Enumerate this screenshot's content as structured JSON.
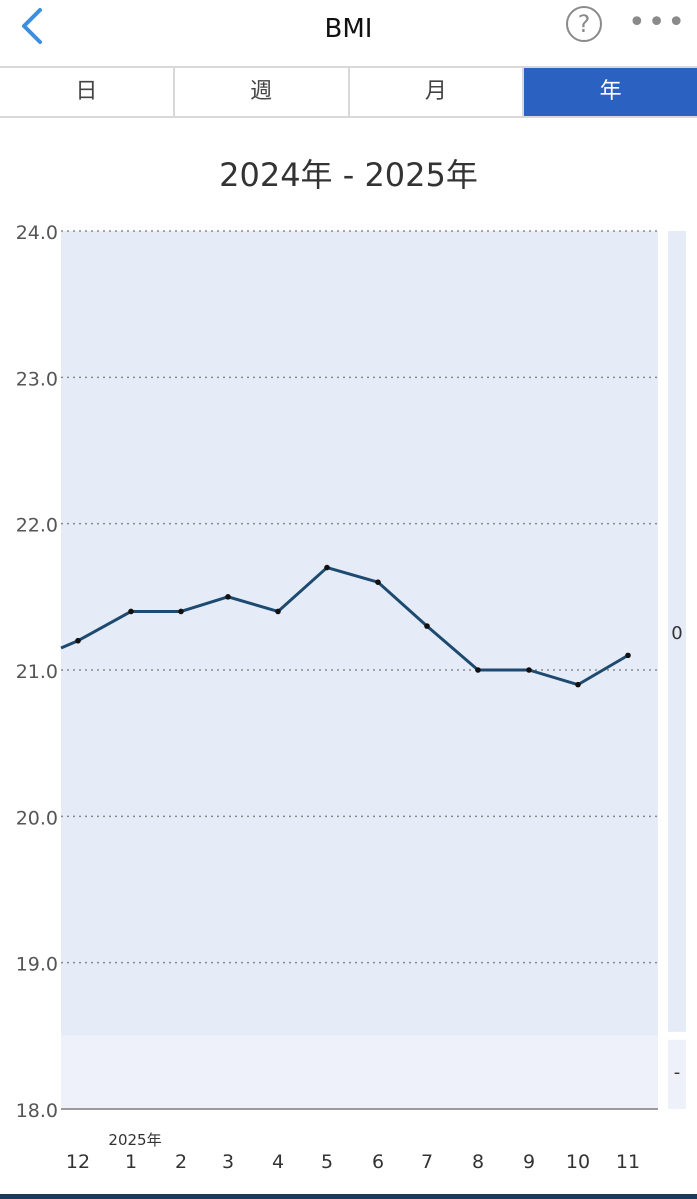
{
  "header": {
    "back_icon": "chevron-left-icon",
    "title": "BMI",
    "help_label": "?",
    "more_label": "•••"
  },
  "tabs": [
    {
      "label": "日",
      "active": false
    },
    {
      "label": "週",
      "active": false
    },
    {
      "label": "月",
      "active": false
    },
    {
      "label": "年",
      "active": true
    }
  ],
  "range_label": "2024年 - 2025年",
  "colors": {
    "accent": "#2b62c1",
    "line": "#1e4a70",
    "plot_band": "#e5ecf7",
    "plot_lower_band": "#eef1f9"
  },
  "chart_data": {
    "type": "line",
    "categories": [
      "12",
      "1",
      "2",
      "3",
      "4",
      "5",
      "6",
      "7",
      "8",
      "9",
      "10",
      "11"
    ],
    "year_marker": {
      "category": "1",
      "label": "2025年"
    },
    "values": [
      21.2,
      21.4,
      21.4,
      21.5,
      21.4,
      21.7,
      21.6,
      21.3,
      21.0,
      21.0,
      20.9,
      21.1
    ],
    "line_start_value": 21.15,
    "ylim": [
      18.0,
      24.0
    ],
    "yticks": [
      "24.0",
      "23.0",
      "22.0",
      "21.0",
      "20.0",
      "19.0",
      "18.0"
    ],
    "band_lower_bound": 18.5,
    "right_labels": [
      "0",
      "-"
    ],
    "grid": true
  }
}
